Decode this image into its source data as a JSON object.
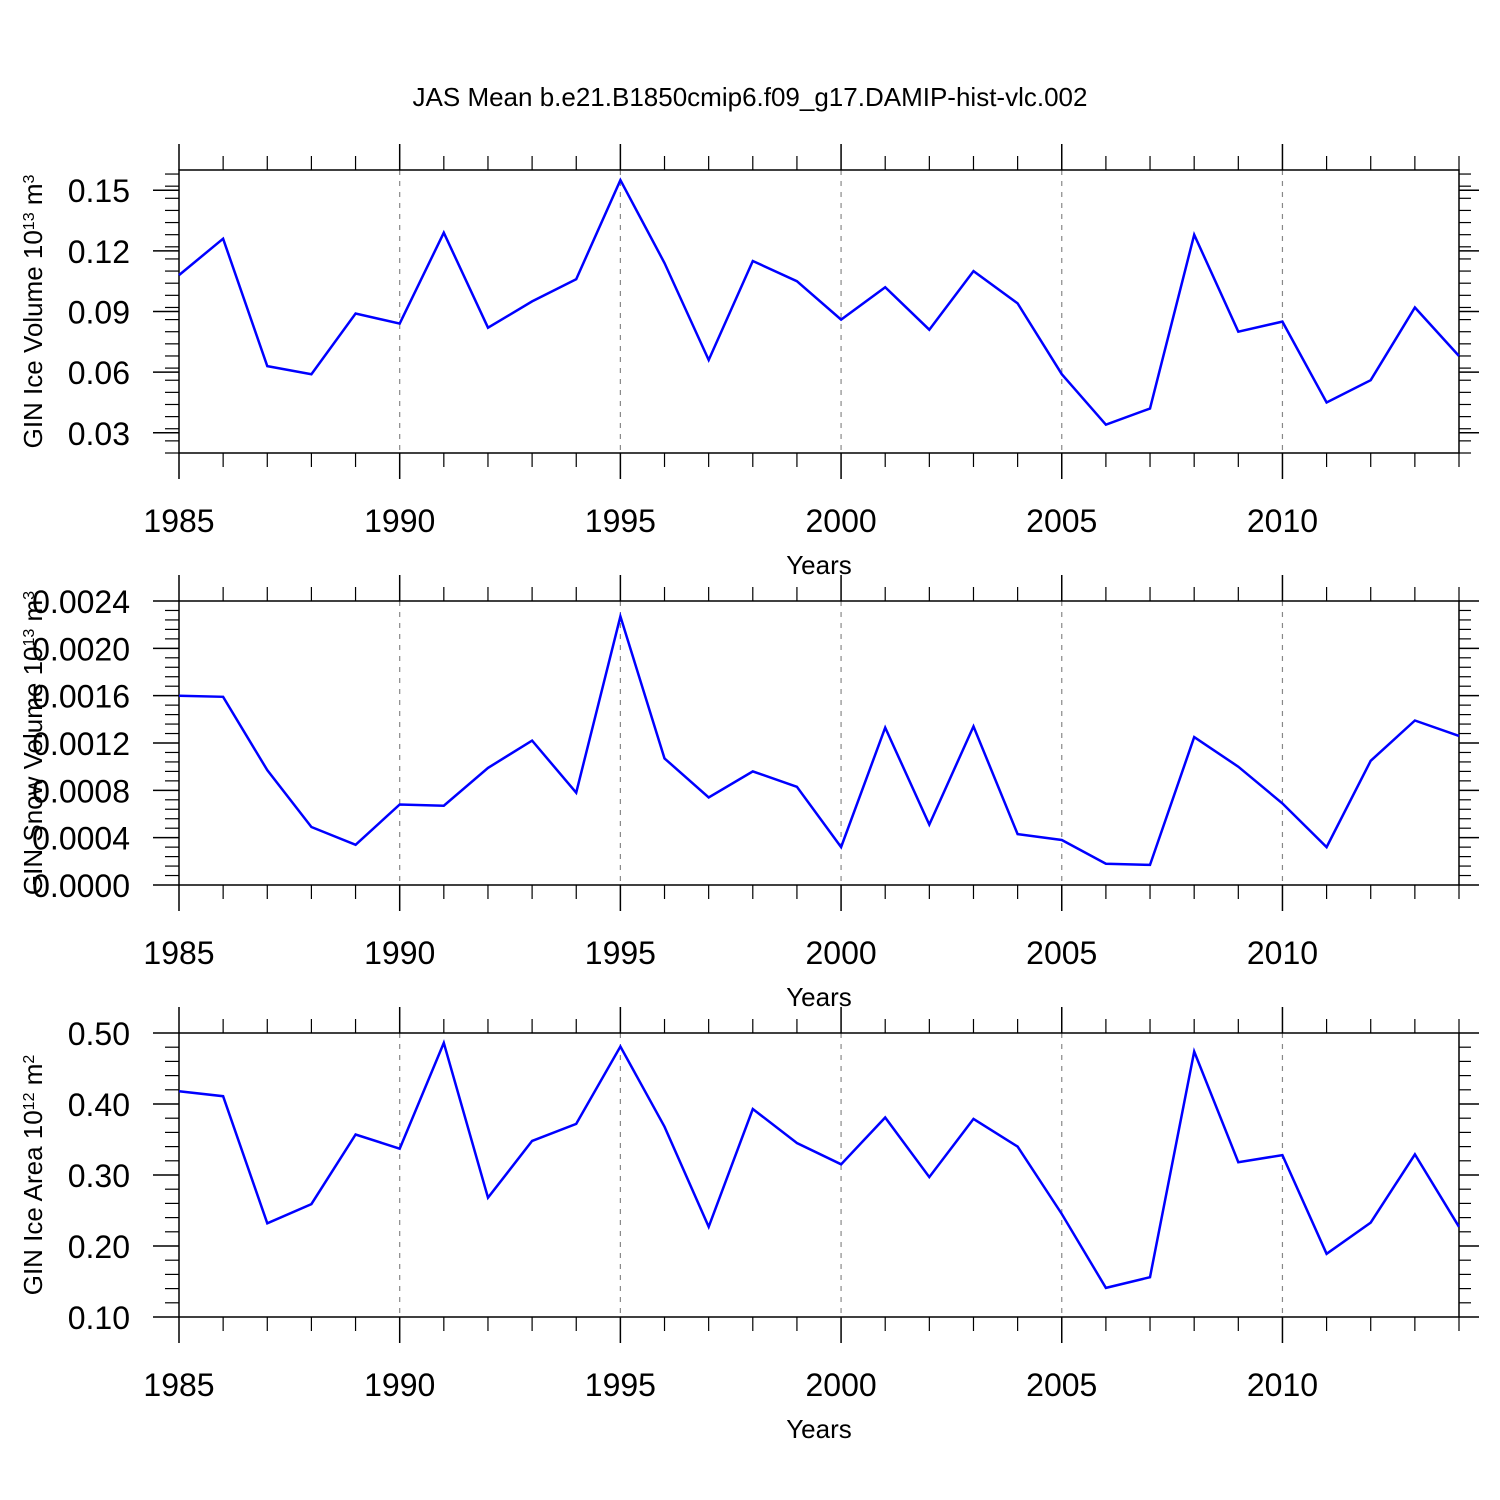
{
  "title": "JAS Mean b.e21.B1850cmip6.f09_g17.DAMIP-hist-vlc.002",
  "colors": {
    "line": "#0000ff",
    "axis": "#000000",
    "grid": "#888888"
  },
  "chart_data": [
    {
      "type": "line",
      "ylabel": "GIN Ice Volume 10",
      "ylabel_exp": "13",
      "ylabel_unit": " m",
      "ylabel_unit_exp": "3",
      "xlabel": "Years",
      "xlim": [
        1985,
        2014
      ],
      "ylim": [
        0.02,
        0.16
      ],
      "xticks": [
        1985,
        1990,
        1995,
        2000,
        2005,
        2010
      ],
      "yticks": [
        "0.03",
        "0.06",
        "0.09",
        "0.12",
        "0.15"
      ],
      "series": [
        {
          "name": "GIN Ice Volume",
          "x": [
            1985,
            1986,
            1987,
            1988,
            1989,
            1990,
            1991,
            1992,
            1993,
            1994,
            1995,
            1996,
            1997,
            1998,
            1999,
            2000,
            2001,
            2002,
            2003,
            2004,
            2005,
            2006,
            2007,
            2008,
            2009,
            2010,
            2011,
            2012,
            2013,
            2014
          ],
          "values": [
            0.108,
            0.126,
            0.063,
            0.059,
            0.089,
            0.084,
            0.129,
            0.082,
            0.095,
            0.106,
            0.155,
            0.114,
            0.066,
            0.115,
            0.105,
            0.086,
            0.102,
            0.081,
            0.11,
            0.094,
            0.059,
            0.034,
            0.042,
            0.128,
            0.08,
            0.085,
            0.045,
            0.056,
            0.092,
            0.068
          ]
        }
      ]
    },
    {
      "type": "line",
      "ylabel": "GIN Snow Volume 10",
      "ylabel_exp": "13",
      "ylabel_unit": " m",
      "ylabel_unit_exp": "3",
      "xlabel": "Years",
      "xlim": [
        1985,
        2014
      ],
      "ylim": [
        0.0,
        0.0024
      ],
      "xticks": [
        1985,
        1990,
        1995,
        2000,
        2005,
        2010
      ],
      "yticks": [
        "0.0000",
        "0.0004",
        "0.0008",
        "0.0012",
        "0.0016",
        "0.0020",
        "0.0024"
      ],
      "series": [
        {
          "name": "GIN Snow Volume",
          "x": [
            1985,
            1986,
            1987,
            1988,
            1989,
            1990,
            1991,
            1992,
            1993,
            1994,
            1995,
            1996,
            1997,
            1998,
            1999,
            2000,
            2001,
            2002,
            2003,
            2004,
            2005,
            2006,
            2007,
            2008,
            2009,
            2010,
            2011,
            2012,
            2013,
            2014
          ],
          "values": [
            0.0016,
            0.00159,
            0.00097,
            0.00049,
            0.00034,
            0.00068,
            0.00067,
            0.00099,
            0.00122,
            0.00078,
            0.00227,
            0.00107,
            0.00074,
            0.00096,
            0.00083,
            0.00032,
            0.00133,
            0.00051,
            0.00134,
            0.00043,
            0.00038,
            0.00018,
            0.00017,
            0.00125,
            0.001,
            0.00069,
            0.00032,
            0.00105,
            0.00139,
            0.00126
          ]
        }
      ]
    },
    {
      "type": "line",
      "ylabel": "GIN Ice Area 10",
      "ylabel_exp": "12",
      "ylabel_unit": " m",
      "ylabel_unit_exp": "2",
      "xlabel": "Years",
      "xlim": [
        1985,
        2014
      ],
      "ylim": [
        0.1,
        0.5
      ],
      "xticks": [
        1985,
        1990,
        1995,
        2000,
        2005,
        2010
      ],
      "yticks": [
        "0.10",
        "0.20",
        "0.30",
        "0.40",
        "0.50"
      ],
      "series": [
        {
          "name": "GIN Ice Area",
          "x": [
            1985,
            1986,
            1987,
            1988,
            1989,
            1990,
            1991,
            1992,
            1993,
            1994,
            1995,
            1996,
            1997,
            1998,
            1999,
            2000,
            2001,
            2002,
            2003,
            2004,
            2005,
            2006,
            2007,
            2008,
            2009,
            2010,
            2011,
            2012,
            2013,
            2014
          ],
          "values": [
            0.418,
            0.411,
            0.232,
            0.259,
            0.357,
            0.337,
            0.486,
            0.268,
            0.348,
            0.372,
            0.481,
            0.368,
            0.227,
            0.393,
            0.345,
            0.315,
            0.381,
            0.297,
            0.379,
            0.34,
            0.245,
            0.141,
            0.156,
            0.474,
            0.318,
            0.328,
            0.189,
            0.233,
            0.329,
            0.227
          ]
        }
      ]
    }
  ]
}
